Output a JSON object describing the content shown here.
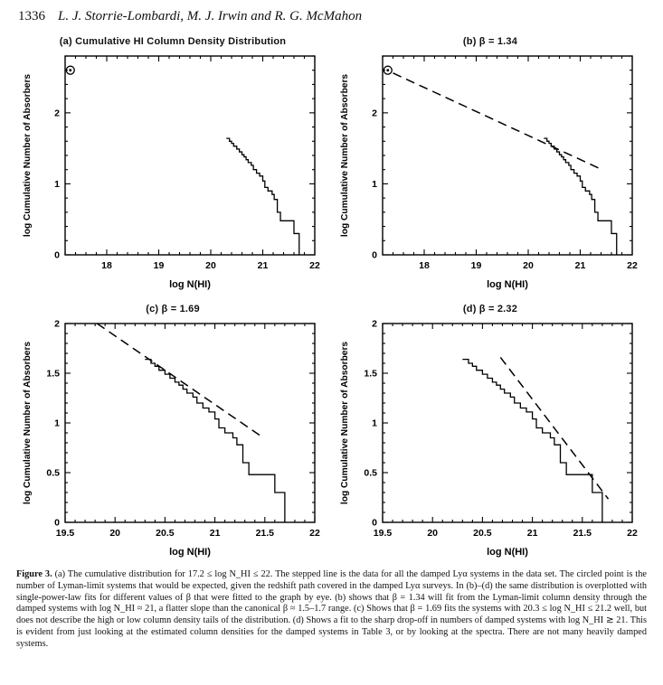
{
  "page": {
    "header": {
      "page_number": "1336",
      "authors": "L. J. Storrie-Lombardi, M. J. Irwin and R. G. McMahon"
    },
    "caption": {
      "label": "Figure 3.",
      "text": " (a) The cumulative distribution for 17.2 ≤ log N_HI ≤ 22. The stepped line is the data for all the damped Lyα systems in the data set. The circled point is the number of Lyman-limit systems that would be expected, given the redshift path covered in the damped Lyα surveys. In (b)–(d) the same distribution is overplotted with single-power-law fits for different values of β that were fitted to the graph by eye. (b) shows that β = 1.34 will fit from the Lyman-limit column density through the damped systems with log N_HI ≈ 21, a flatter slope than the canonical β ≈ 1.5–1.7 range. (c) Shows that β = 1.69 fits the systems with 20.3 ≤ log N_HI ≤ 21.2 well, but does not describe the high or low column density tails of the distribution. (d) Shows a fit to the sharp drop-off in numbers of damped systems with log N_HI ≳ 21. This is evident from just looking at the estimated column densities for the damped systems in Table 3, or by looking at the spectra. There are not many heavily damped systems."
    }
  },
  "chart_data": {
    "type": "line",
    "description": "Cumulative HI column density distribution of damped Lyman-alpha absorbers; stepped empirical curve with single-power-law dashed fits.",
    "shared": {
      "step_points": [
        [
          20.3,
          1.64
        ],
        [
          20.36,
          1.6
        ],
        [
          20.4,
          1.57
        ],
        [
          20.44,
          1.53
        ],
        [
          20.5,
          1.49
        ],
        [
          20.55,
          1.45
        ],
        [
          20.6,
          1.41
        ],
        [
          20.64,
          1.38
        ],
        [
          20.68,
          1.34
        ],
        [
          20.72,
          1.3
        ],
        [
          20.78,
          1.26
        ],
        [
          20.82,
          1.2
        ],
        [
          20.88,
          1.15
        ],
        [
          20.94,
          1.11
        ],
        [
          21.0,
          1.04
        ],
        [
          21.04,
          0.95
        ],
        [
          21.1,
          0.9
        ],
        [
          21.18,
          0.85
        ],
        [
          21.22,
          0.78
        ],
        [
          21.28,
          0.6
        ],
        [
          21.34,
          0.48
        ],
        [
          21.6,
          0.3
        ],
        [
          21.7,
          0.0
        ]
      ],
      "circled_point": [
        17.3,
        2.6
      ],
      "line_color": "#000000",
      "background": "#ffffff"
    },
    "panels": [
      {
        "id": "a",
        "title": "(a) Cumulative HI Column Density Distribution",
        "xlabel": "log N(HI)",
        "ylabel": "log Cumulative Number of Absorbers",
        "xlim": [
          17.2,
          22
        ],
        "ylim": [
          0,
          2.8
        ],
        "x_ticks": [
          18,
          19,
          20,
          21,
          22
        ],
        "x_tick_labels": [
          "18",
          "19",
          "20",
          "21",
          "22"
        ],
        "y_ticks": [
          0,
          1,
          2
        ],
        "y_tick_labels": [
          "0",
          "1",
          "2"
        ],
        "x_minor": 0.2,
        "y_minor": 0.2,
        "circle": true,
        "dash": null,
        "beta": null
      },
      {
        "id": "b",
        "title": "(b) β = 1.34",
        "xlabel": "log N(HI)",
        "ylabel": "log Cumulative Number of Absorbers",
        "xlim": [
          17.2,
          22
        ],
        "ylim": [
          0,
          2.8
        ],
        "x_ticks": [
          18,
          19,
          20,
          21,
          22
        ],
        "x_tick_labels": [
          "18",
          "19",
          "20",
          "21",
          "22"
        ],
        "y_ticks": [
          0,
          1,
          2
        ],
        "y_tick_labels": [
          "0",
          "1",
          "2"
        ],
        "x_minor": 0.2,
        "y_minor": 0.2,
        "circle": true,
        "dash": [
          [
            17.4,
            2.56
          ],
          [
            21.42,
            1.2
          ]
        ],
        "beta": 1.34
      },
      {
        "id": "c",
        "title": "(c) β = 1.69",
        "xlabel": "log N(HI)",
        "ylabel": "log Cumulative Number of Absorbers",
        "xlim": [
          19.5,
          22
        ],
        "ylim": [
          0,
          2
        ],
        "x_ticks": [
          19.5,
          20,
          20.5,
          21,
          21.5,
          22
        ],
        "x_tick_labels": [
          "19.5",
          "20",
          "20.5",
          "21",
          "21.5",
          "22"
        ],
        "y_ticks": [
          0,
          0.5,
          1,
          1.5,
          2
        ],
        "y_tick_labels": [
          "0",
          "0.5",
          "1",
          "1.5",
          "2"
        ],
        "x_minor": 0.1,
        "y_minor": 0.1,
        "circle": false,
        "dash": [
          [
            19.82,
            2.0
          ],
          [
            21.45,
            0.875
          ]
        ],
        "beta": 1.69
      },
      {
        "id": "d",
        "title": "(d) β = 2.32",
        "xlabel": "log N(HI)",
        "ylabel": "log Cumulative Number of Absorbers",
        "xlim": [
          19.5,
          22
        ],
        "ylim": [
          0,
          2
        ],
        "x_ticks": [
          19.5,
          20,
          20.5,
          21,
          21.5,
          22
        ],
        "x_tick_labels": [
          "19.5",
          "20",
          "20.5",
          "21",
          "21.5",
          "22"
        ],
        "y_ticks": [
          0,
          0.5,
          1,
          1.5,
          2
        ],
        "y_tick_labels": [
          "0",
          "0.5",
          "1",
          "1.5",
          "2"
        ],
        "x_minor": 0.1,
        "y_minor": 0.1,
        "circle": false,
        "dash": [
          [
            20.68,
            1.66
          ],
          [
            21.76,
            0.235
          ]
        ],
        "beta": 2.32
      }
    ]
  }
}
